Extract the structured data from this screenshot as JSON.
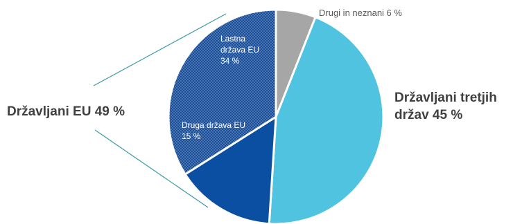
{
  "chart_data": {
    "type": "pie",
    "slices": [
      {
        "label": "Drugi in neznani",
        "value": 6,
        "display": "Drugi in neznani 6 %",
        "color": "#a6a6a6"
      },
      {
        "label": "Državljani tretjih držav",
        "value": 45,
        "display_lines": [
          "Državljani tretjih",
          "držav 45 %"
        ],
        "color": "#4fc3df"
      },
      {
        "label": "Druga država EU",
        "value": 15,
        "display_lines": [
          "Druga država EU",
          "15 %"
        ],
        "color": "#0b4fa3"
      },
      {
        "label": "Lastna država EU",
        "value": 34,
        "display_lines": [
          "Lastna",
          "država EU",
          "34 %"
        ],
        "color": "#1a4d96",
        "pattern": "dotted"
      }
    ],
    "group": {
      "label": "Državljani EU 49 %",
      "members": [
        "Druga država EU",
        "Lastna država EU"
      ]
    },
    "note": "Lastna država EU slice is drawn with a dotted fill; EU group bracket lines connect to the EU slices."
  }
}
